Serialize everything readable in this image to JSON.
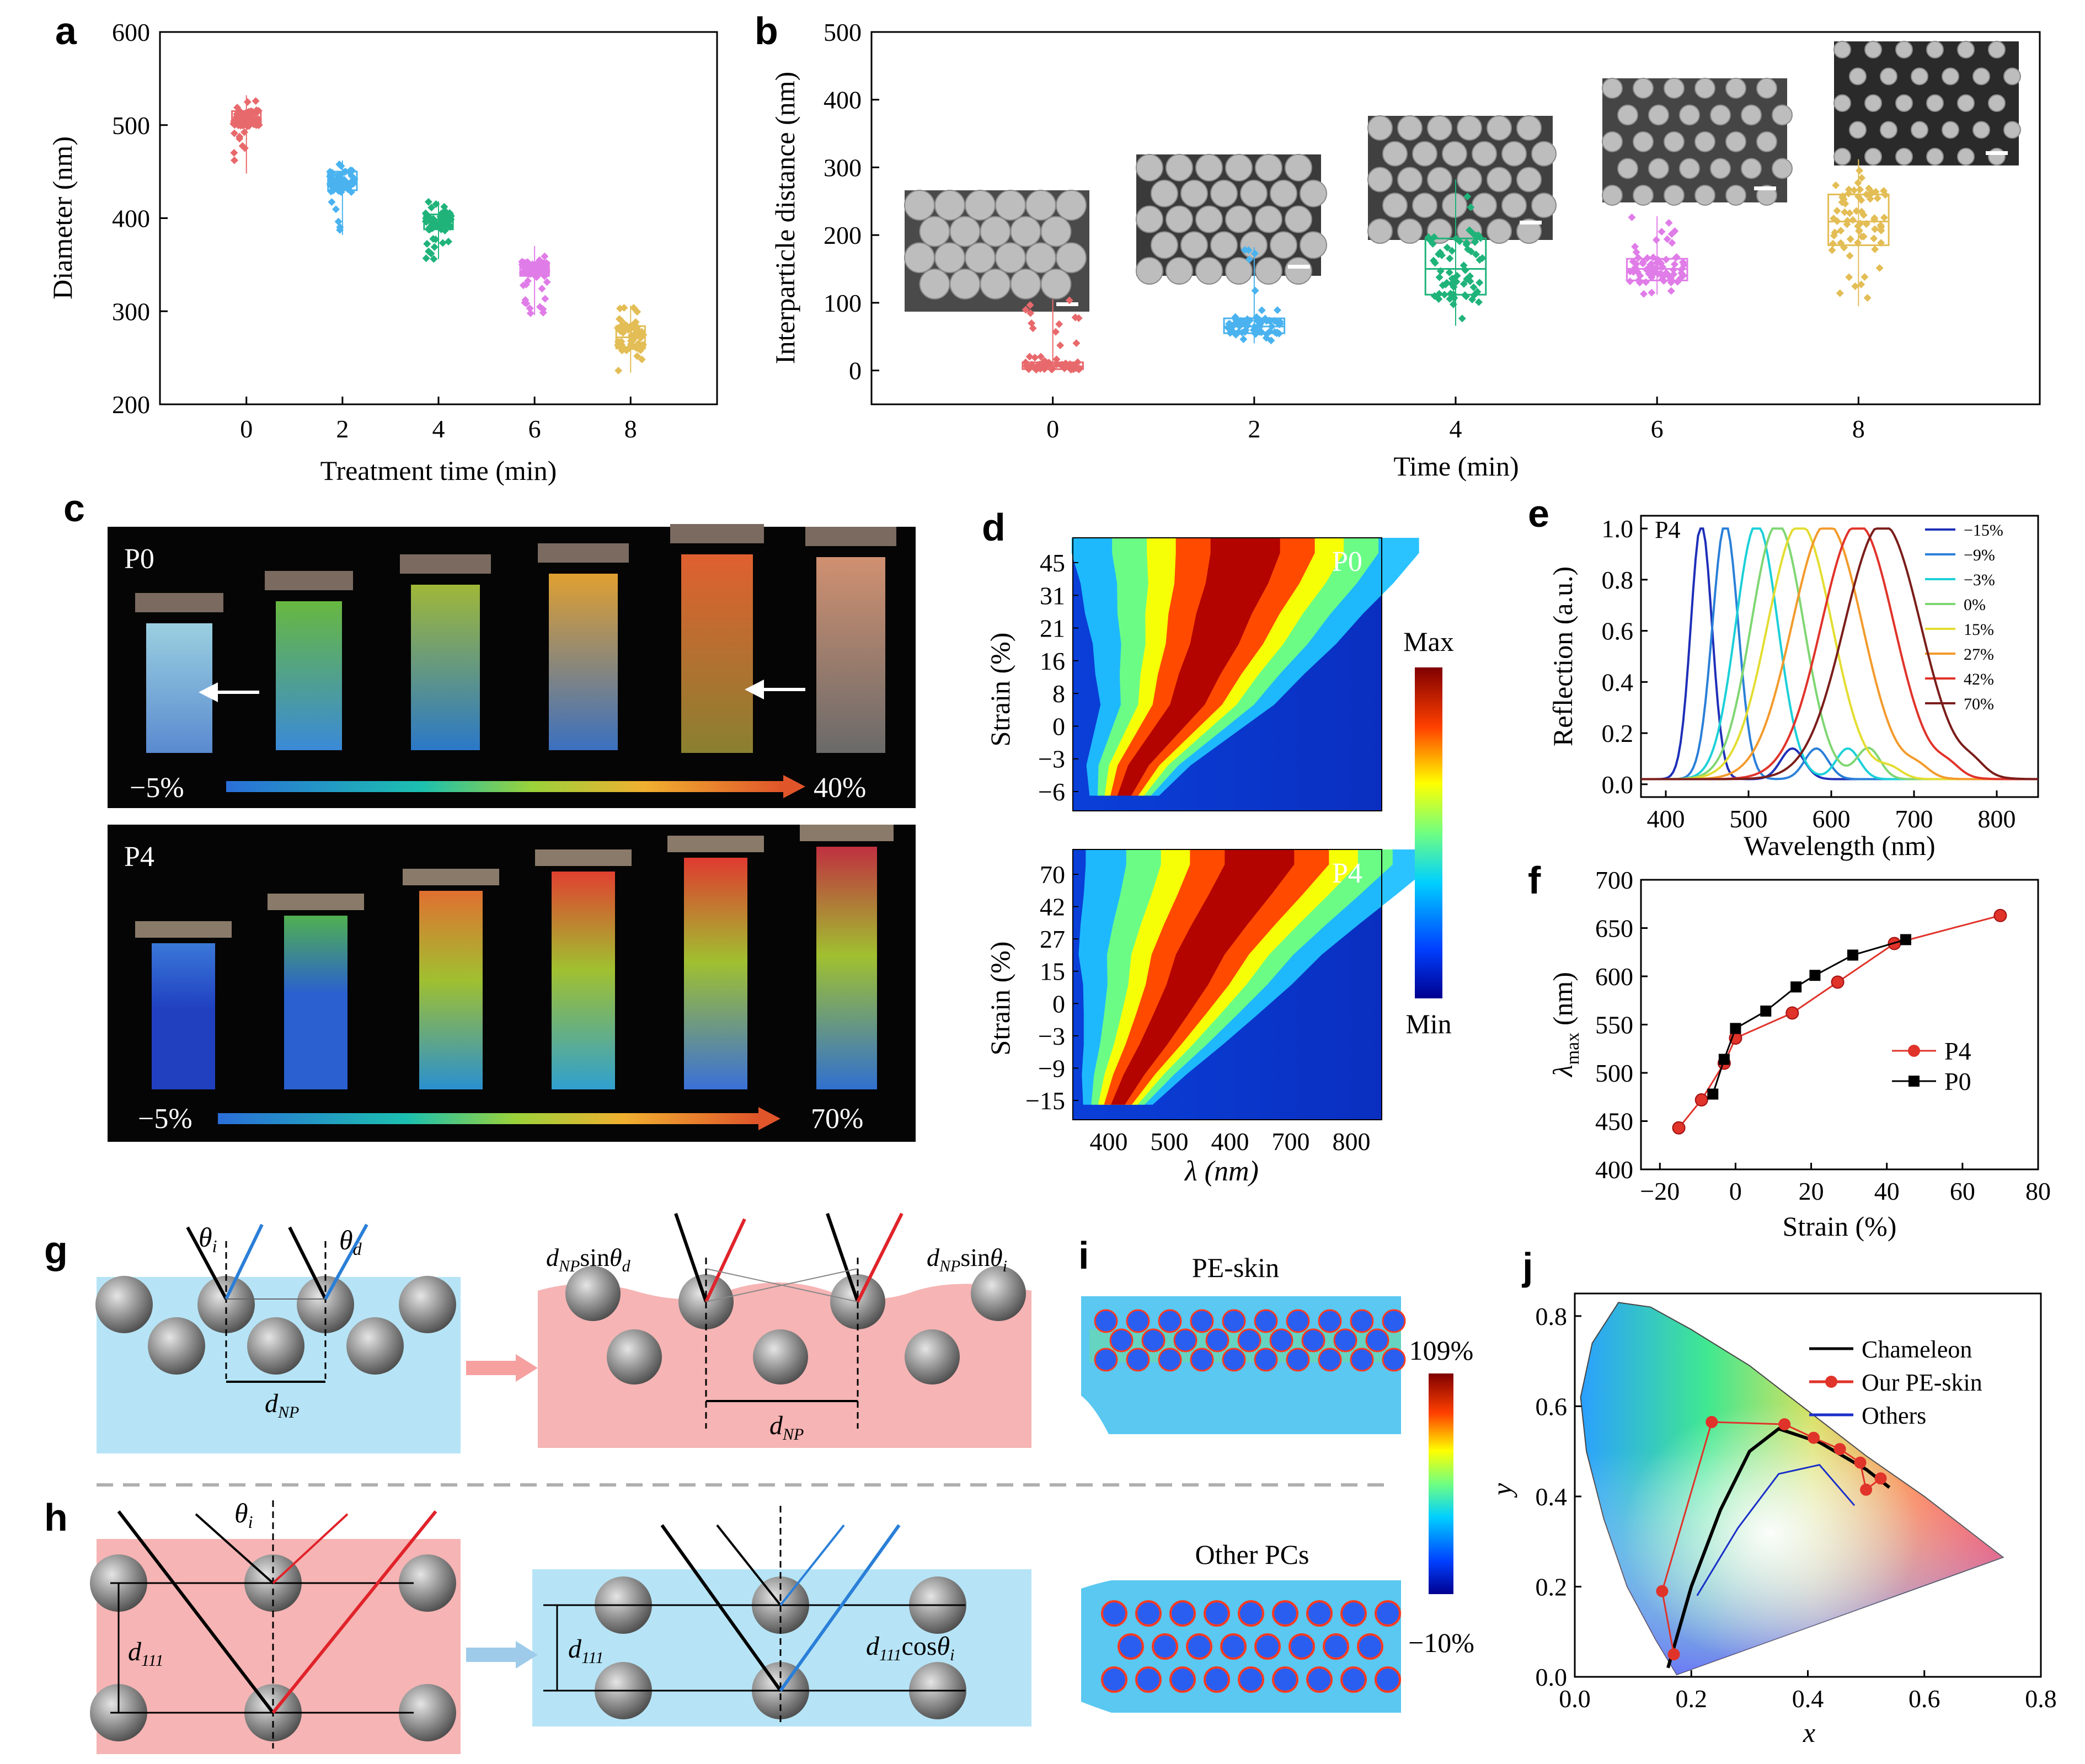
{
  "panels": {
    "a": "a",
    "b": "b",
    "c": "c",
    "d": "d",
    "e": "e",
    "f": "f",
    "g": "g",
    "h": "h",
    "i": "i",
    "j": "j"
  },
  "colors": {
    "t0": "#e8696c",
    "t2": "#4ab3ef",
    "t4": "#1fb37a",
    "t6": "#e07ce8",
    "t8": "#e3bd55",
    "skin_blue": "#b6e4f6",
    "skin_pink": "#f6b4b4",
    "sphere": "#8a8a8a"
  },
  "chart_data": [
    {
      "id": "a",
      "type": "box-scatter",
      "xlabel": "Treatment time (min)",
      "ylabel": "Diameter (nm)",
      "xticks": [
        "0",
        "2",
        "4",
        "6",
        "8"
      ],
      "yticks": [
        200,
        300,
        400,
        500,
        600
      ],
      "ylim": [
        200,
        600
      ],
      "groups": [
        {
          "x": "0",
          "min": 448,
          "q1": 500,
          "median": 506,
          "q3": 515,
          "max": 532,
          "color": "#e8696c"
        },
        {
          "x": "2",
          "min": 382,
          "q1": 430,
          "median": 440,
          "q3": 450,
          "max": 462,
          "color": "#4ab3ef"
        },
        {
          "x": "4",
          "min": 356,
          "q1": 388,
          "median": 396,
          "q3": 404,
          "max": 418,
          "color": "#1fb37a"
        },
        {
          "x": "6",
          "min": 296,
          "q1": 338,
          "median": 346,
          "q3": 352,
          "max": 370,
          "color": "#e07ce8"
        },
        {
          "x": "8",
          "min": 234,
          "q1": 260,
          "median": 272,
          "q3": 284,
          "max": 306,
          "color": "#e3bd55"
        }
      ]
    },
    {
      "id": "b",
      "type": "box-scatter",
      "xlabel": "Time (min)",
      "ylabel": "Interparticle distance (nm)",
      "xticks": [
        "0",
        "2",
        "4",
        "6",
        "8"
      ],
      "yticks": [
        0,
        100,
        200,
        300,
        400,
        500
      ],
      "ylim": [
        -50,
        500
      ],
      "groups": [
        {
          "x": "0",
          "min": 0,
          "q1": 2,
          "median": 6,
          "q3": 12,
          "max": 105,
          "color": "#e8696c"
        },
        {
          "x": "2",
          "min": 40,
          "q1": 55,
          "median": 65,
          "q3": 77,
          "max": 182,
          "color": "#4ab3ef"
        },
        {
          "x": "4",
          "min": 66,
          "q1": 112,
          "median": 150,
          "q3": 195,
          "max": 282,
          "color": "#1fb37a"
        },
        {
          "x": "6",
          "min": 112,
          "q1": 133,
          "median": 150,
          "q3": 165,
          "max": 228,
          "color": "#e07ce8"
        },
        {
          "x": "8",
          "min": 95,
          "q1": 185,
          "median": 220,
          "q3": 260,
          "max": 312,
          "color": "#e3bd55"
        }
      ]
    },
    {
      "id": "d",
      "type": "heatmap",
      "xlabel": "λ (nm)",
      "xticks": [
        "400",
        "500",
        "400",
        "700",
        "800"
      ],
      "colorbar": {
        "max": "Max",
        "min": "Min"
      },
      "maps": [
        {
          "label": "P0",
          "ylabel": "Strain (%)",
          "yticks": [
            "45",
            "31",
            "21",
            "16",
            "8",
            "0",
            "−3",
            "−6"
          ],
          "ridge_nm": [
            450,
            472,
            510,
            548,
            567,
            590,
            605,
            625,
            638
          ]
        },
        {
          "label": "P4",
          "ylabel": "Strain (%)",
          "yticks": [
            "70",
            "42",
            "27",
            "15",
            "0",
            "−3",
            "−9",
            "−15"
          ],
          "ridge_nm": [
            440,
            465,
            495,
            522,
            548,
            568,
            598,
            630,
            660
          ]
        }
      ]
    },
    {
      "id": "e",
      "type": "line",
      "label": "P4",
      "xlabel": "Wavelength (nm)",
      "ylabel": "Reflection (a.u.)",
      "xlim": [
        370,
        850
      ],
      "ylim": [
        -0.05,
        1.05
      ],
      "xticks": [
        400,
        500,
        600,
        700,
        800
      ],
      "yticks": [
        0.0,
        0.2,
        0.4,
        0.6,
        0.8,
        1.0
      ],
      "legend_position": "top-right",
      "series": [
        {
          "name": "−15%",
          "peak_nm": 443,
          "width_nm": 18,
          "color": "#1e2fb8"
        },
        {
          "name": "−9%",
          "peak_nm": 472,
          "width_nm": 22,
          "color": "#2a7fd8"
        },
        {
          "name": "−3%",
          "peak_nm": 510,
          "width_nm": 36,
          "color": "#1cd0d8"
        },
        {
          "name": "0%",
          "peak_nm": 535,
          "width_nm": 45,
          "color": "#7fd673"
        },
        {
          "name": "15%",
          "peak_nm": 562,
          "width_nm": 55,
          "color": "#e3dd32"
        },
        {
          "name": "27%",
          "peak_nm": 595,
          "width_nm": 60,
          "color": "#f39a2c"
        },
        {
          "name": "42%",
          "peak_nm": 632,
          "width_nm": 62,
          "color": "#e0332a"
        },
        {
          "name": "70%",
          "peak_nm": 662,
          "width_nm": 65,
          "color": "#7a1d1a"
        }
      ]
    },
    {
      "id": "f",
      "type": "line",
      "xlabel": "Strain (%)",
      "ylabel": "λmax (nm)",
      "xlim": [
        -25,
        80
      ],
      "ylim": [
        400,
        700
      ],
      "xticks": [
        "−20",
        "0",
        "20",
        "40",
        "60",
        "80"
      ],
      "yticks": [
        400,
        450,
        500,
        550,
        600,
        650,
        700
      ],
      "legend_position": "bottom-right",
      "series": [
        {
          "name": "P4",
          "color": "#e0332a",
          "marker": "circle",
          "x": [
            -15,
            -9,
            -3,
            0,
            15,
            27,
            42,
            70
          ],
          "y": [
            443,
            472,
            510,
            536,
            562,
            594,
            634,
            663
          ]
        },
        {
          "name": "P0",
          "color": "#000000",
          "marker": "square",
          "x": [
            -6,
            -3,
            0,
            8,
            16,
            21,
            31,
            45
          ],
          "y": [
            478,
            514,
            546,
            564,
            589,
            601,
            622,
            638
          ]
        }
      ]
    },
    {
      "id": "j",
      "type": "scatter",
      "xlabel": "x",
      "ylabel": "y",
      "xlim": [
        0,
        0.8
      ],
      "ylim": [
        0,
        0.85
      ],
      "xticks": [
        "0.0",
        "0.2",
        "0.4",
        "0.6",
        "0.8"
      ],
      "yticks": [
        "0.0",
        "0.2",
        "0.4",
        "0.6",
        "0.8"
      ],
      "legend_position": "top-right",
      "series": [
        {
          "name": "Chameleon",
          "color": "#000000",
          "x": [
            0.16,
            0.2,
            0.25,
            0.3,
            0.35,
            0.42,
            0.5,
            0.54
          ],
          "y": [
            0.02,
            0.2,
            0.37,
            0.5,
            0.55,
            0.52,
            0.46,
            0.42
          ]
        },
        {
          "name": "Our PE-skin",
          "color": "#e0332a",
          "x": [
            0.17,
            0.15,
            0.235,
            0.36,
            0.41,
            0.455,
            0.49,
            0.5,
            0.525
          ],
          "y": [
            0.05,
            0.19,
            0.565,
            0.56,
            0.53,
            0.505,
            0.475,
            0.415,
            0.44
          ]
        },
        {
          "name": "Others",
          "color": "#1a2fc8",
          "x": [
            0.21,
            0.28,
            0.35,
            0.42,
            0.48
          ],
          "y": [
            0.18,
            0.33,
            0.45,
            0.47,
            0.38
          ]
        }
      ]
    }
  ],
  "photos": {
    "p0": {
      "label": "P0",
      "scale_start": "−5%",
      "scale_end": "40%"
    },
    "p4": {
      "label": "P4",
      "scale_start": "−5%",
      "scale_end": "70%"
    }
  },
  "schematic": {
    "theta_i": "θi",
    "theta_d": "θd",
    "d_np": "dNP",
    "dnp_sin_d": "dNPsinθd",
    "dnp_sin_i": "dNPsinθi",
    "d111": "d111",
    "d111_cos": "d111cosθi"
  },
  "field_maps": {
    "pe_skin": "PE-skin",
    "other_pcs": "Other PCs",
    "cbar_max": "109%",
    "cbar_min": "−10%"
  }
}
